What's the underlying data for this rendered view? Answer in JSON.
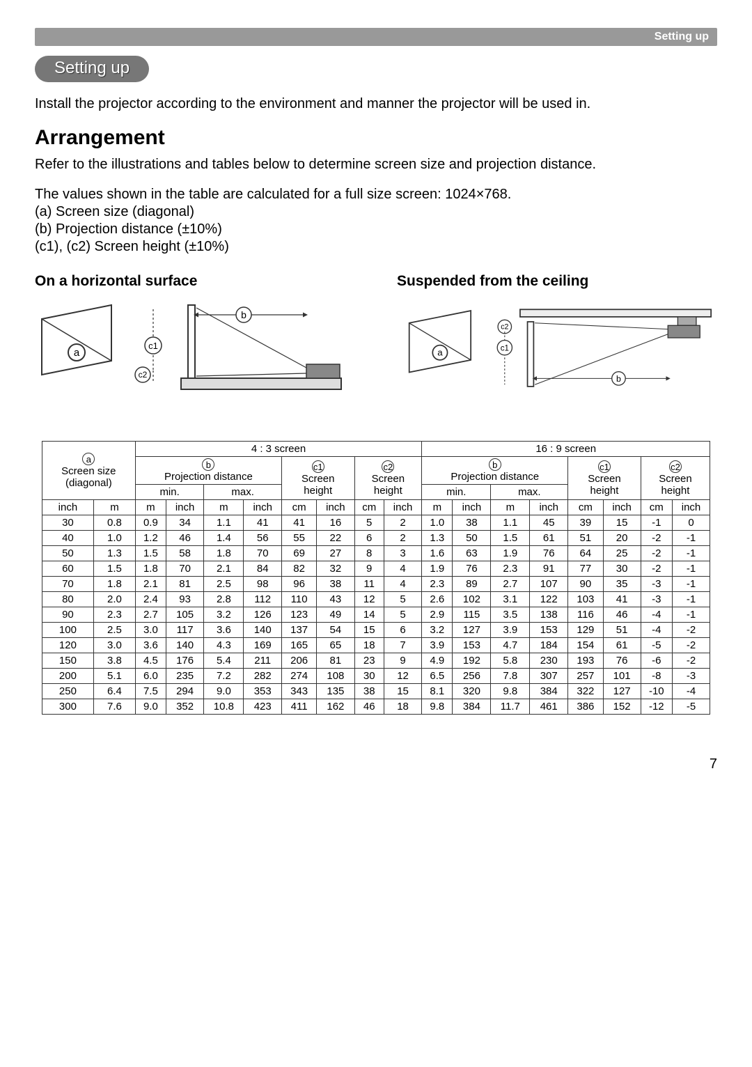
{
  "header": {
    "label": "Setting up"
  },
  "badge": "Setting up",
  "intro": "Install the projector according to the environment and manner the projector will be used in.",
  "heading": "Arrangement",
  "para1": "Refer to the illustrations and tables below to determine screen size and projection distance.",
  "para2": "The values shown in the table are calculated for a full size screen: 1024×768.",
  "legend": {
    "a": "(a) Screen size (diagonal)",
    "b": "(b) Projection distance (±10%)",
    "c": "(c1), (c2) Screen height (±10%)"
  },
  "diagrams": {
    "left_title": "On a horizontal surface",
    "right_title": "Suspended from the ceiling"
  },
  "labels": {
    "a": "a",
    "b": "b",
    "c1": "c1",
    "c2": "c2",
    "screen_size": "Screen size",
    "diagonal": "(diagonal)",
    "proj_dist": "Projection distance",
    "screen_height": "Screen",
    "height": "height",
    "min": "min.",
    "max": "max.",
    "inch": "inch",
    "m": "m",
    "cm": "cm",
    "s43": "4 : 3 screen",
    "s169": "16 : 9 screen"
  },
  "table": {
    "rows": [
      [
        "30",
        "0.8",
        "0.9",
        "34",
        "1.1",
        "41",
        "41",
        "16",
        "5",
        "2",
        "1.0",
        "38",
        "1.1",
        "45",
        "39",
        "15",
        "-1",
        "0"
      ],
      [
        "40",
        "1.0",
        "1.2",
        "46",
        "1.4",
        "56",
        "55",
        "22",
        "6",
        "2",
        "1.3",
        "50",
        "1.5",
        "61",
        "51",
        "20",
        "-2",
        "-1"
      ],
      [
        "50",
        "1.3",
        "1.5",
        "58",
        "1.8",
        "70",
        "69",
        "27",
        "8",
        "3",
        "1.6",
        "63",
        "1.9",
        "76",
        "64",
        "25",
        "-2",
        "-1"
      ],
      [
        "60",
        "1.5",
        "1.8",
        "70",
        "2.1",
        "84",
        "82",
        "32",
        "9",
        "4",
        "1.9",
        "76",
        "2.3",
        "91",
        "77",
        "30",
        "-2",
        "-1"
      ],
      [
        "70",
        "1.8",
        "2.1",
        "81",
        "2.5",
        "98",
        "96",
        "38",
        "11",
        "4",
        "2.3",
        "89",
        "2.7",
        "107",
        "90",
        "35",
        "-3",
        "-1"
      ],
      [
        "80",
        "2.0",
        "2.4",
        "93",
        "2.8",
        "112",
        "110",
        "43",
        "12",
        "5",
        "2.6",
        "102",
        "3.1",
        "122",
        "103",
        "41",
        "-3",
        "-1"
      ],
      [
        "90",
        "2.3",
        "2.7",
        "105",
        "3.2",
        "126",
        "123",
        "49",
        "14",
        "5",
        "2.9",
        "115",
        "3.5",
        "138",
        "116",
        "46",
        "-4",
        "-1"
      ],
      [
        "100",
        "2.5",
        "3.0",
        "117",
        "3.6",
        "140",
        "137",
        "54",
        "15",
        "6",
        "3.2",
        "127",
        "3.9",
        "153",
        "129",
        "51",
        "-4",
        "-2"
      ],
      [
        "120",
        "3.0",
        "3.6",
        "140",
        "4.3",
        "169",
        "165",
        "65",
        "18",
        "7",
        "3.9",
        "153",
        "4.7",
        "184",
        "154",
        "61",
        "-5",
        "-2"
      ],
      [
        "150",
        "3.8",
        "4.5",
        "176",
        "5.4",
        "211",
        "206",
        "81",
        "23",
        "9",
        "4.9",
        "192",
        "5.8",
        "230",
        "193",
        "76",
        "-6",
        "-2"
      ],
      [
        "200",
        "5.1",
        "6.0",
        "235",
        "7.2",
        "282",
        "274",
        "108",
        "30",
        "12",
        "6.5",
        "256",
        "7.8",
        "307",
        "257",
        "101",
        "-8",
        "-3"
      ],
      [
        "250",
        "6.4",
        "7.5",
        "294",
        "9.0",
        "353",
        "343",
        "135",
        "38",
        "15",
        "8.1",
        "320",
        "9.8",
        "384",
        "322",
        "127",
        "-10",
        "-4"
      ],
      [
        "300",
        "7.6",
        "9.0",
        "352",
        "10.8",
        "423",
        "411",
        "162",
        "46",
        "18",
        "9.8",
        "384",
        "11.7",
        "461",
        "386",
        "152",
        "-12",
        "-5"
      ]
    ]
  },
  "page_number": "7"
}
